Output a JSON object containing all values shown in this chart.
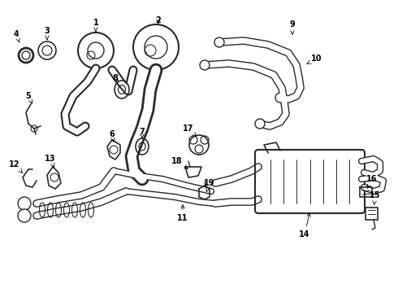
{
  "background_color": "#ffffff",
  "line_color": "#2a2a2a",
  "figsize": [
    4.9,
    3.6
  ],
  "dpi": 100
}
